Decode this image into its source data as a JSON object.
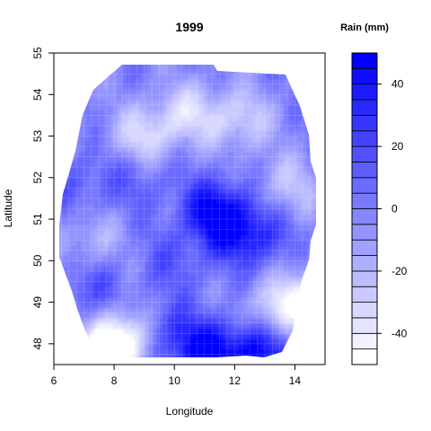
{
  "chart_data": {
    "type": "heatmap",
    "title": "1999",
    "xlabel": "Longitude",
    "ylabel": "Latitude",
    "xlim": [
      6,
      15
    ],
    "ylim": [
      47.5,
      55
    ],
    "x_ticks": [
      "6",
      "8",
      "10",
      "12",
      "14"
    ],
    "y_ticks": [
      "48",
      "49",
      "50",
      "51",
      "52",
      "53",
      "54",
      "55"
    ],
    "grid": true,
    "legend": {
      "title": "Rain (mm)",
      "placement": "right",
      "range": [
        -50,
        50
      ],
      "ticks": [
        "-40",
        "-20",
        "0",
        "20",
        "40"
      ],
      "low_color": "#ffffff",
      "high_color": "#0000ff"
    },
    "value_hotspots": [
      {
        "lon": 11.8,
        "lat": 50.9,
        "value": 40
      },
      {
        "lon": 11.2,
        "lat": 51.3,
        "value": 30
      },
      {
        "lon": 12.8,
        "lat": 50.5,
        "value": 25
      },
      {
        "lon": 9.5,
        "lat": 48.3,
        "value": 30
      },
      {
        "lon": 11.0,
        "lat": 47.8,
        "value": 50
      },
      {
        "lon": 12.8,
        "lat": 47.8,
        "value": 50
      },
      {
        "lon": 7.2,
        "lat": 49.3,
        "value": 20
      },
      {
        "lon": 8.8,
        "lat": 52.0,
        "value": 15
      },
      {
        "lon": 6.8,
        "lat": 51.8,
        "value": 15
      },
      {
        "lon": 9.0,
        "lat": 53.0,
        "value": -35
      },
      {
        "lon": 10.5,
        "lat": 53.6,
        "value": -30
      },
      {
        "lon": 12.2,
        "lat": 53.4,
        "value": -30
      },
      {
        "lon": 8.5,
        "lat": 48.2,
        "value": -45
      },
      {
        "lon": 7.8,
        "lat": 47.8,
        "value": -45
      },
      {
        "lon": 13.5,
        "lat": 48.8,
        "value": -40
      },
      {
        "lon": 14.5,
        "lat": 49.3,
        "value": -25
      },
      {
        "lon": 7.2,
        "lat": 50.5,
        "value": -20
      },
      {
        "lon": 13.8,
        "lat": 51.8,
        "value": -25
      },
      {
        "lon": 10.0,
        "lat": 50.0,
        "value": 15
      }
    ]
  }
}
